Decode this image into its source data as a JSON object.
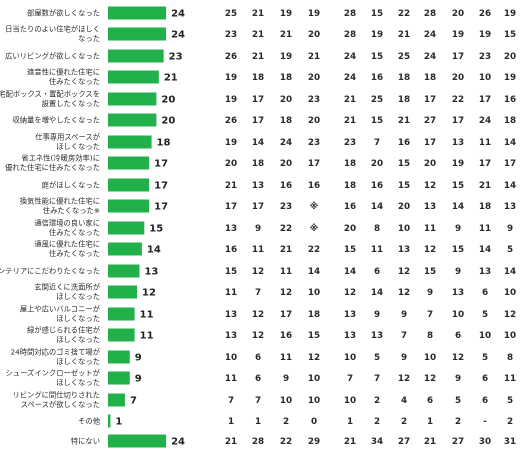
{
  "chart_data": {
    "type": "bar",
    "orientation": "horizontal",
    "bar_color": "#22b04b",
    "legend": "none",
    "grid": false,
    "xlim": [
      0,
      26
    ],
    "categories": [
      [
        "部屋数が欲しくなった"
      ],
      [
        "日当たりのよい住宅がほしく",
        "なった"
      ],
      [
        "広いリビングが欲しくなった"
      ],
      [
        "遮音性に優れた住宅に",
        "住みたくなった"
      ],
      [
        "宅配ボックス・置配ボックスを",
        "設置したくなった"
      ],
      [
        "収納量を増やしたくなった"
      ],
      [
        "仕事専用スペースが",
        "ほしくなった"
      ],
      [
        "省エネ性(冷暖房効率)に",
        "優れた住宅に住みたくなった"
      ],
      [
        "庭がほしくなった"
      ],
      [
        "換気性能に優れた住宅に",
        "住みたくなった※"
      ],
      [
        "通信環境の良い家に",
        "住みたくなった"
      ],
      [
        "通風に優れた住宅に",
        "住みたくなった"
      ],
      [
        "インテリアにこだわりたくなった"
      ],
      [
        "玄関近くに洗面所が",
        "ほしくなった"
      ],
      [
        "屋上や広いバルコニーが",
        "ほしくなった"
      ],
      [
        "緑が感じられる住宅が",
        "ほしくなった"
      ],
      [
        "24時間対応のゴミ捨て場が",
        "ほしくなった"
      ],
      [
        "シューズインクローゼットが",
        "ほしくなった"
      ],
      [
        "リビングに間仕切りされた",
        "スペースが欲しくなった"
      ],
      [
        "その他"
      ],
      [
        "特にない"
      ]
    ],
    "values": [
      24,
      24,
      23,
      21,
      20,
      20,
      18,
      17,
      17,
      17,
      15,
      14,
      13,
      12,
      11,
      11,
      9,
      9,
      7,
      1,
      24
    ],
    "table_rows": [
      [
        "25",
        "21",
        "19",
        "19",
        "28",
        "15",
        "22",
        "28",
        "20",
        "26",
        "19"
      ],
      [
        "23",
        "21",
        "21",
        "20",
        "28",
        "19",
        "21",
        "24",
        "19",
        "19",
        "15"
      ],
      [
        "26",
        "21",
        "19",
        "21",
        "24",
        "15",
        "25",
        "24",
        "17",
        "23",
        "20"
      ],
      [
        "19",
        "18",
        "18",
        "20",
        "24",
        "16",
        "18",
        "18",
        "20",
        "10",
        "19"
      ],
      [
        "19",
        "17",
        "20",
        "23",
        "21",
        "25",
        "18",
        "17",
        "22",
        "17",
        "16"
      ],
      [
        "26",
        "17",
        "18",
        "20",
        "21",
        "15",
        "21",
        "27",
        "17",
        "24",
        "18"
      ],
      [
        "19",
        "14",
        "24",
        "23",
        "23",
        "7",
        "16",
        "17",
        "13",
        "11",
        "14"
      ],
      [
        "20",
        "18",
        "20",
        "17",
        "18",
        "20",
        "15",
        "20",
        "19",
        "17",
        "17"
      ],
      [
        "21",
        "13",
        "16",
        "16",
        "18",
        "16",
        "15",
        "12",
        "15",
        "21",
        "14"
      ],
      [
        "17",
        "17",
        "23",
        "※",
        "16",
        "14",
        "20",
        "13",
        "14",
        "18",
        "13"
      ],
      [
        "13",
        "9",
        "22",
        "※",
        "20",
        "8",
        "10",
        "11",
        "9",
        "11",
        "9"
      ],
      [
        "16",
        "11",
        "21",
        "22",
        "15",
        "11",
        "13",
        "12",
        "15",
        "14",
        "5"
      ],
      [
        "15",
        "12",
        "11",
        "14",
        "14",
        "6",
        "12",
        "15",
        "9",
        "13",
        "14"
      ],
      [
        "11",
        "7",
        "12",
        "10",
        "12",
        "14",
        "12",
        "9",
        "13",
        "6",
        "10"
      ],
      [
        "13",
        "12",
        "17",
        "18",
        "13",
        "9",
        "9",
        "7",
        "10",
        "5",
        "12"
      ],
      [
        "13",
        "12",
        "16",
        "15",
        "13",
        "13",
        "7",
        "8",
        "6",
        "10",
        "10"
      ],
      [
        "10",
        "6",
        "11",
        "12",
        "10",
        "5",
        "9",
        "10",
        "12",
        "5",
        "8"
      ],
      [
        "11",
        "6",
        "9",
        "10",
        "7",
        "7",
        "12",
        "12",
        "9",
        "6",
        "11"
      ],
      [
        "7",
        "7",
        "10",
        "10",
        "10",
        "2",
        "4",
        "6",
        "5",
        "6",
        "5"
      ],
      [
        "1",
        "1",
        "2",
        "0",
        "1",
        "2",
        "2",
        "1",
        "2",
        "-",
        "2"
      ],
      [
        "21",
        "28",
        "22",
        "29",
        "21",
        "34",
        "27",
        "21",
        "27",
        "30",
        "31"
      ]
    ]
  }
}
